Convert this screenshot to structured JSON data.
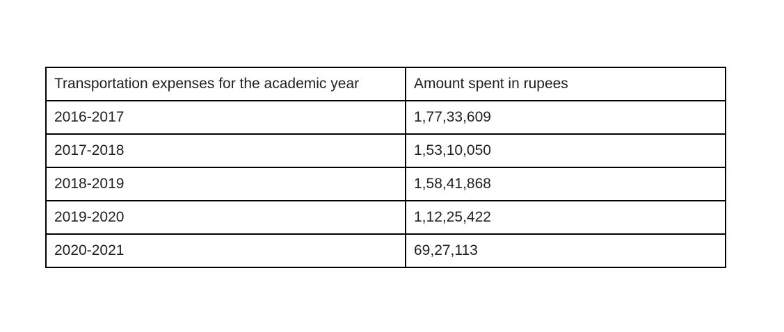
{
  "table": {
    "headers": [
      "Transportation expenses for the academic year",
      "Amount spent in rupees"
    ],
    "rows": [
      [
        "2016-2017",
        "1,77,33,609"
      ],
      [
        "2017-2018",
        "1,53,10,050"
      ],
      [
        "2018-2019",
        "1,58,41,868"
      ],
      [
        "2019-2020",
        "1,12,25,422"
      ],
      [
        "2020-2021",
        "69,27,113"
      ]
    ]
  }
}
